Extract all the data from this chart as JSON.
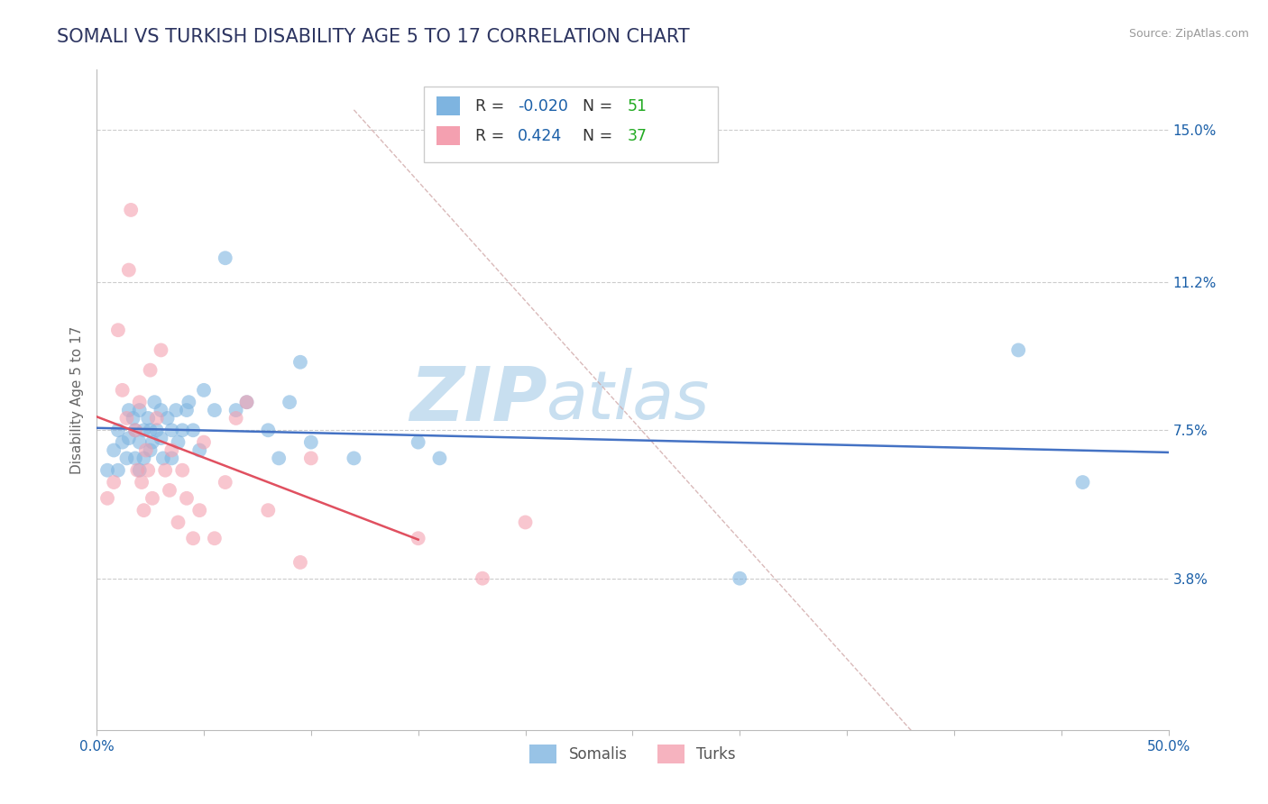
{
  "title": "SOMALI VS TURKISH DISABILITY AGE 5 TO 17 CORRELATION CHART",
  "source": "Source: ZipAtlas.com",
  "ylabel": "Disability Age 5 to 17",
  "xlim": [
    0.0,
    0.5
  ],
  "ylim": [
    0.0,
    0.165
  ],
  "xtick_positions": [
    0.0,
    0.05,
    0.1,
    0.15,
    0.2,
    0.25,
    0.3,
    0.35,
    0.4,
    0.45,
    0.5
  ],
  "xtick_labels_show": {
    "0.0": "0.0%",
    "0.50": "50.0%"
  },
  "ytick_positions": [
    0.038,
    0.075,
    0.112,
    0.15
  ],
  "ytick_labels": [
    "3.8%",
    "7.5%",
    "11.2%",
    "15.0%"
  ],
  "grid_color": "#cccccc",
  "background_color": "#ffffff",
  "watermark_zip": "ZIP",
  "watermark_atlas": "atlas",
  "watermark_color_zip": "#c8dff0",
  "watermark_color_atlas": "#c8dff0",
  "somali_color": "#7eb4e0",
  "turks_color": "#f4a0b0",
  "somali_r": -0.02,
  "somali_n": 51,
  "turks_r": 0.424,
  "turks_n": 37,
  "r_label_color": "#1a5fa8",
  "n_label_color": "#22aa22",
  "somali_scatter_x": [
    0.005,
    0.008,
    0.01,
    0.01,
    0.012,
    0.014,
    0.015,
    0.015,
    0.017,
    0.018,
    0.018,
    0.02,
    0.02,
    0.02,
    0.022,
    0.022,
    0.024,
    0.025,
    0.025,
    0.026,
    0.027,
    0.028,
    0.03,
    0.03,
    0.031,
    0.033,
    0.035,
    0.035,
    0.037,
    0.038,
    0.04,
    0.042,
    0.043,
    0.045,
    0.048,
    0.05,
    0.055,
    0.06,
    0.065,
    0.07,
    0.08,
    0.085,
    0.09,
    0.095,
    0.1,
    0.12,
    0.15,
    0.16,
    0.3,
    0.43,
    0.46
  ],
  "somali_scatter_y": [
    0.065,
    0.07,
    0.075,
    0.065,
    0.072,
    0.068,
    0.08,
    0.073,
    0.078,
    0.075,
    0.068,
    0.08,
    0.072,
    0.065,
    0.075,
    0.068,
    0.078,
    0.075,
    0.07,
    0.072,
    0.082,
    0.075,
    0.08,
    0.073,
    0.068,
    0.078,
    0.075,
    0.068,
    0.08,
    0.072,
    0.075,
    0.08,
    0.082,
    0.075,
    0.07,
    0.085,
    0.08,
    0.118,
    0.08,
    0.082,
    0.075,
    0.068,
    0.082,
    0.092,
    0.072,
    0.068,
    0.072,
    0.068,
    0.038,
    0.095,
    0.062
  ],
  "turks_scatter_x": [
    0.005,
    0.008,
    0.01,
    0.012,
    0.014,
    0.015,
    0.016,
    0.018,
    0.019,
    0.02,
    0.021,
    0.022,
    0.023,
    0.024,
    0.025,
    0.026,
    0.028,
    0.03,
    0.032,
    0.034,
    0.035,
    0.038,
    0.04,
    0.042,
    0.045,
    0.048,
    0.05,
    0.055,
    0.06,
    0.065,
    0.07,
    0.08,
    0.095,
    0.1,
    0.15,
    0.18,
    0.2
  ],
  "turks_scatter_y": [
    0.058,
    0.062,
    0.1,
    0.085,
    0.078,
    0.115,
    0.13,
    0.075,
    0.065,
    0.082,
    0.062,
    0.055,
    0.07,
    0.065,
    0.09,
    0.058,
    0.078,
    0.095,
    0.065,
    0.06,
    0.07,
    0.052,
    0.065,
    0.058,
    0.048,
    0.055,
    0.072,
    0.048,
    0.062,
    0.078,
    0.082,
    0.055,
    0.042,
    0.068,
    0.048,
    0.038,
    0.052
  ],
  "somali_line_color": "#4472c4",
  "turks_line_color": "#e05060",
  "diag_line_color": "#d0a8a8",
  "title_color": "#2d3561",
  "title_fontsize": 15,
  "axis_label_color": "#666666",
  "tick_label_color_x": "#1a5fa8",
  "tick_label_color_y": "#1a5fa8"
}
